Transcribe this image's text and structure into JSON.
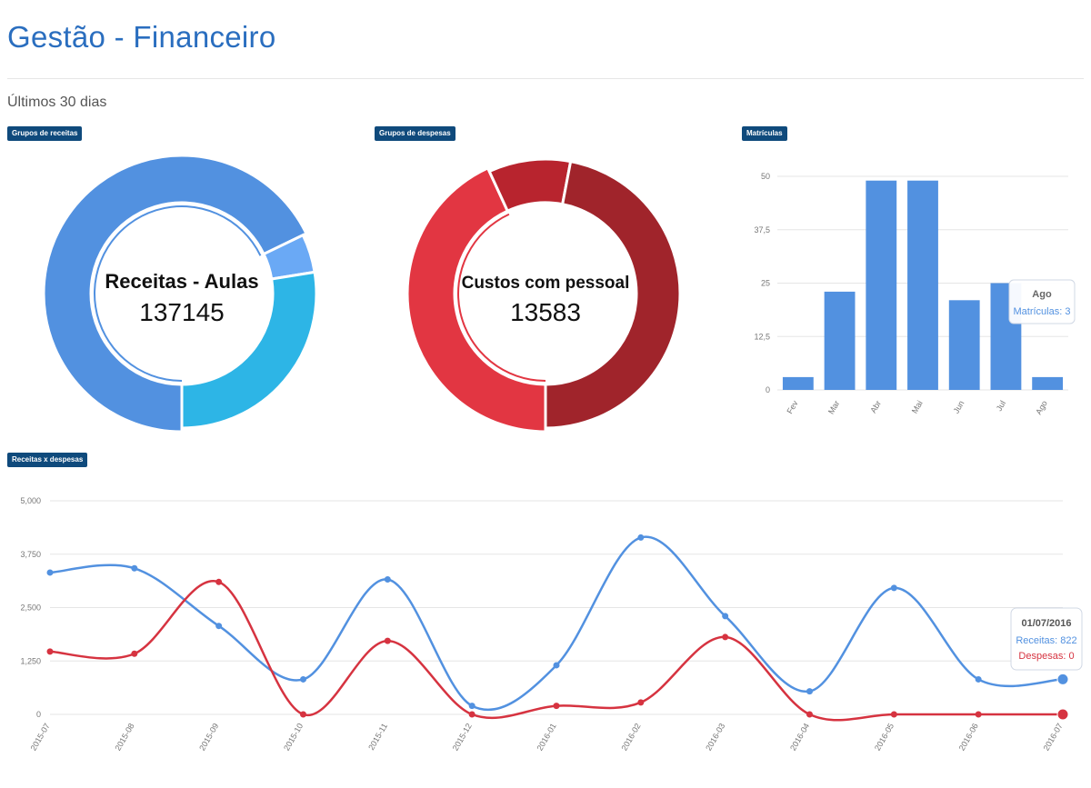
{
  "page": {
    "title": "Gestão - Financeiro",
    "subtitle": "Últimos 30 dias"
  },
  "colors": {
    "title": "#2a6ebf",
    "badge_bg": "#0f4a7c",
    "blue": "#5291e0",
    "red": "#d63340"
  },
  "chart_data": [
    {
      "id": "receitas",
      "badge": "Grupos de receitas",
      "type": "pie",
      "donut": true,
      "center_label": "Receitas - Aulas",
      "center_value": "137145",
      "slices": [
        {
          "value": 137145,
          "color": "#5291e0",
          "highlighted": true
        },
        {
          "value": 9300,
          "color": "#6aa9f5"
        },
        {
          "value": 55700,
          "color": "#2db5e6"
        }
      ]
    },
    {
      "id": "despesas",
      "badge": "Grupos de despesas",
      "type": "pie",
      "donut": true,
      "center_label": "Custos com pessoal",
      "center_value": "13583",
      "slices": [
        {
          "value": 13583,
          "color": "#e23642",
          "highlighted": true
        },
        {
          "value": 3100,
          "color": "#b8242e"
        },
        {
          "value": 14800,
          "color": "#a0242b"
        }
      ]
    },
    {
      "id": "matriculas",
      "badge": "Matrículas",
      "type": "bar",
      "categories": [
        "Fev",
        "Mar",
        "Abr",
        "Mai",
        "Jun",
        "Jul",
        "Ago"
      ],
      "series": [
        {
          "values": [
            3,
            23,
            49,
            49,
            21,
            25,
            3
          ],
          "color": "#5291e0"
        }
      ],
      "ylim": [
        0,
        50
      ],
      "yticks": [
        "0",
        "12,5",
        "25",
        "37,5",
        "50"
      ],
      "grid": true,
      "tooltip": {
        "title": "Ago",
        "label": "Matrículas",
        "value": "3"
      }
    },
    {
      "id": "receitas-despesas",
      "badge": "Receitas x despesas",
      "type": "line",
      "x": [
        "2015-07",
        "2015-08",
        "2015-09",
        "2015-10",
        "2015-11",
        "2015-12",
        "2016-01",
        "2016-02",
        "2016-03",
        "2016-04",
        "2016-05",
        "2016-06",
        "2016-07"
      ],
      "series": [
        {
          "name": "Receitas",
          "color": "#5291e0",
          "values": [
            3320,
            3420,
            2070,
            820,
            3160,
            200,
            1150,
            4140,
            2300,
            540,
            2960,
            820,
            822
          ]
        },
        {
          "name": "Despesas",
          "color": "#d63340",
          "values": [
            1470,
            1420,
            3100,
            0,
            1720,
            0,
            200,
            280,
            1810,
            0,
            0,
            0,
            0
          ]
        }
      ],
      "ylim": [
        0,
        5000
      ],
      "yticks": [
        "0",
        "1,250",
        "2,500",
        "3,750",
        "5,000"
      ],
      "grid": true,
      "tooltip": {
        "title": "01/07/2016",
        "rows": [
          "Receitas: 822",
          "Despesas: 0"
        ]
      }
    }
  ]
}
